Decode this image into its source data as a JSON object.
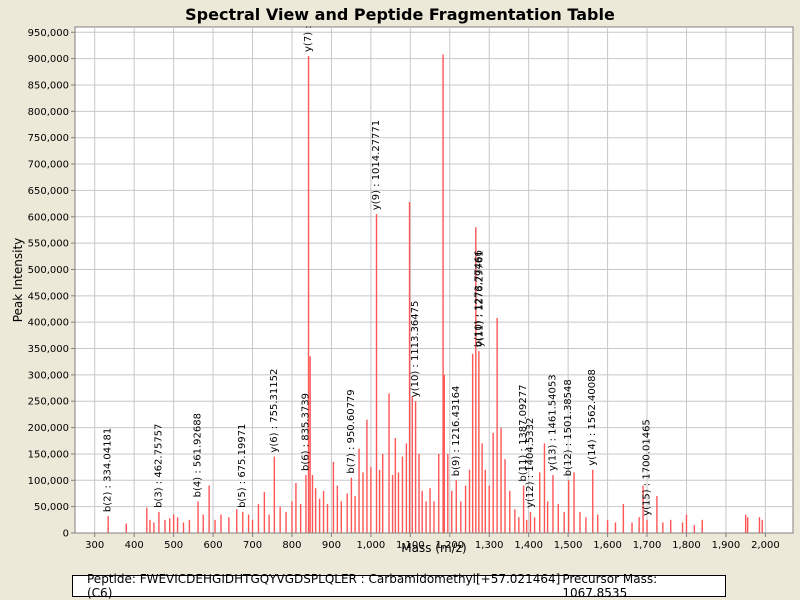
{
  "chart_data": {
    "type": "bar",
    "title": "Spectral View and Peptide Fragmentation Table",
    "xlabel": "Mass (m/z)",
    "ylabel": "Peak Intensity",
    "xlim": [
      250,
      2070
    ],
    "ylim": [
      0,
      960000
    ],
    "x_ticks": [
      300,
      400,
      500,
      600,
      700,
      800,
      900,
      1000,
      1100,
      1200,
      1300,
      1400,
      1500,
      1600,
      1700,
      1800,
      1900,
      2000
    ],
    "x_tick_labels": [
      "300",
      "400",
      "500",
      "600",
      "700",
      "800",
      "900",
      "1,000",
      "1,100",
      "1,200",
      "1,300",
      "1,400",
      "1,500",
      "1,600",
      "1,700",
      "1,800",
      "1,900",
      "2,000"
    ],
    "y_ticks": [
      0,
      50000,
      100000,
      150000,
      200000,
      250000,
      300000,
      350000,
      400000,
      450000,
      500000,
      550000,
      600000,
      650000,
      700000,
      750000,
      800000,
      850000,
      900000,
      950000
    ],
    "y_tick_labels": [
      "0",
      "50,000",
      "100,000",
      "150,000",
      "200,000",
      "250,000",
      "300,000",
      "350,000",
      "400,000",
      "450,000",
      "500,000",
      "550,000",
      "600,000",
      "650,000",
      "700,000",
      "750,000",
      "800,000",
      "850,000",
      "900,000",
      "950,000"
    ],
    "grid": true,
    "bar_color": "#ff5555",
    "peaks": [
      {
        "mz": 334.04,
        "intensity": 32000
      },
      {
        "mz": 380,
        "intensity": 18000
      },
      {
        "mz": 432,
        "intensity": 48000
      },
      {
        "mz": 440,
        "intensity": 25000
      },
      {
        "mz": 450,
        "intensity": 20000
      },
      {
        "mz": 462.76,
        "intensity": 40000
      },
      {
        "mz": 478,
        "intensity": 25000
      },
      {
        "mz": 490,
        "intensity": 28000
      },
      {
        "mz": 500,
        "intensity": 35000
      },
      {
        "mz": 510,
        "intensity": 30000
      },
      {
        "mz": 525,
        "intensity": 20000
      },
      {
        "mz": 540,
        "intensity": 25000
      },
      {
        "mz": 561.93,
        "intensity": 60000
      },
      {
        "mz": 575,
        "intensity": 35000
      },
      {
        "mz": 590,
        "intensity": 90000
      },
      {
        "mz": 605,
        "intensity": 25000
      },
      {
        "mz": 620,
        "intensity": 35000
      },
      {
        "mz": 640,
        "intensity": 30000
      },
      {
        "mz": 660,
        "intensity": 45000
      },
      {
        "mz": 675.2,
        "intensity": 40000
      },
      {
        "mz": 690,
        "intensity": 35000
      },
      {
        "mz": 700,
        "intensity": 25000
      },
      {
        "mz": 715,
        "intensity": 55000
      },
      {
        "mz": 730,
        "intensity": 78000
      },
      {
        "mz": 742,
        "intensity": 35000
      },
      {
        "mz": 755.31,
        "intensity": 145000
      },
      {
        "mz": 770,
        "intensity": 50000
      },
      {
        "mz": 785,
        "intensity": 40000
      },
      {
        "mz": 800,
        "intensity": 60000
      },
      {
        "mz": 810,
        "intensity": 95000
      },
      {
        "mz": 822,
        "intensity": 55000
      },
      {
        "mz": 835.37,
        "intensity": 110000
      },
      {
        "mz": 842,
        "intensity": 905000
      },
      {
        "mz": 846,
        "intensity": 335000
      },
      {
        "mz": 852,
        "intensity": 110000
      },
      {
        "mz": 860,
        "intensity": 85000
      },
      {
        "mz": 870,
        "intensity": 65000
      },
      {
        "mz": 880,
        "intensity": 80000
      },
      {
        "mz": 890,
        "intensity": 55000
      },
      {
        "mz": 905,
        "intensity": 135000
      },
      {
        "mz": 915,
        "intensity": 90000
      },
      {
        "mz": 925,
        "intensity": 60000
      },
      {
        "mz": 940,
        "intensity": 75000
      },
      {
        "mz": 950.61,
        "intensity": 105000
      },
      {
        "mz": 960,
        "intensity": 70000
      },
      {
        "mz": 970,
        "intensity": 160000
      },
      {
        "mz": 980,
        "intensity": 115000
      },
      {
        "mz": 990,
        "intensity": 215000
      },
      {
        "mz": 1000,
        "intensity": 125000
      },
      {
        "mz": 1014.28,
        "intensity": 605000
      },
      {
        "mz": 1022,
        "intensity": 120000
      },
      {
        "mz": 1030,
        "intensity": 150000
      },
      {
        "mz": 1046,
        "intensity": 265000
      },
      {
        "mz": 1055,
        "intensity": 110000
      },
      {
        "mz": 1062,
        "intensity": 180000
      },
      {
        "mz": 1070,
        "intensity": 115000
      },
      {
        "mz": 1080,
        "intensity": 145000
      },
      {
        "mz": 1090,
        "intensity": 170000
      },
      {
        "mz": 1098,
        "intensity": 628000
      },
      {
        "mz": 1105,
        "intensity": 260000
      },
      {
        "mz": 1113.36,
        "intensity": 250000
      },
      {
        "mz": 1122,
        "intensity": 150000
      },
      {
        "mz": 1130,
        "intensity": 80000
      },
      {
        "mz": 1140,
        "intensity": 60000
      },
      {
        "mz": 1150,
        "intensity": 85000
      },
      {
        "mz": 1160,
        "intensity": 60000
      },
      {
        "mz": 1172,
        "intensity": 150000
      },
      {
        "mz": 1183,
        "intensity": 908000
      },
      {
        "mz": 1186,
        "intensity": 300000
      },
      {
        "mz": 1195,
        "intensity": 150000
      },
      {
        "mz": 1205,
        "intensity": 80000
      },
      {
        "mz": 1216.43,
        "intensity": 100000
      },
      {
        "mz": 1228,
        "intensity": 60000
      },
      {
        "mz": 1240,
        "intensity": 90000
      },
      {
        "mz": 1250,
        "intensity": 120000
      },
      {
        "mz": 1258,
        "intensity": 340000
      },
      {
        "mz": 1266,
        "intensity": 580000
      },
      {
        "mz": 1273.77,
        "intensity": 345000
      },
      {
        "mz": 1282,
        "intensity": 170000
      },
      {
        "mz": 1290,
        "intensity": 120000
      },
      {
        "mz": 1300,
        "intensity": 90000
      },
      {
        "mz": 1310,
        "intensity": 190000
      },
      {
        "mz": 1320,
        "intensity": 408000
      },
      {
        "mz": 1330,
        "intensity": 200000
      },
      {
        "mz": 1340,
        "intensity": 140000
      },
      {
        "mz": 1352,
        "intensity": 80000
      },
      {
        "mz": 1365,
        "intensity": 45000
      },
      {
        "mz": 1375,
        "intensity": 30000
      },
      {
        "mz": 1387.09,
        "intensity": 90000
      },
      {
        "mz": 1395,
        "intensity": 25000
      },
      {
        "mz": 1404.53,
        "intensity": 40000
      },
      {
        "mz": 1415,
        "intensity": 30000
      },
      {
        "mz": 1428,
        "intensity": 115000
      },
      {
        "mz": 1440,
        "intensity": 170000
      },
      {
        "mz": 1448,
        "intensity": 60000
      },
      {
        "mz": 1461.54,
        "intensity": 110000
      },
      {
        "mz": 1475,
        "intensity": 55000
      },
      {
        "mz": 1490,
        "intensity": 40000
      },
      {
        "mz": 1501.39,
        "intensity": 100000
      },
      {
        "mz": 1515,
        "intensity": 115000
      },
      {
        "mz": 1530,
        "intensity": 40000
      },
      {
        "mz": 1545,
        "intensity": 30000
      },
      {
        "mz": 1562.4,
        "intensity": 120000
      },
      {
        "mz": 1575,
        "intensity": 35000
      },
      {
        "mz": 1600,
        "intensity": 25000
      },
      {
        "mz": 1620,
        "intensity": 20000
      },
      {
        "mz": 1640,
        "intensity": 55000
      },
      {
        "mz": 1662,
        "intensity": 20000
      },
      {
        "mz": 1680,
        "intensity": 30000
      },
      {
        "mz": 1690,
        "intensity": 90000
      },
      {
        "mz": 1700.01,
        "intensity": 25000
      },
      {
        "mz": 1725,
        "intensity": 70000
      },
      {
        "mz": 1740,
        "intensity": 20000
      },
      {
        "mz": 1760,
        "intensity": 25000
      },
      {
        "mz": 1790,
        "intensity": 20000
      },
      {
        "mz": 1800,
        "intensity": 35000
      },
      {
        "mz": 1820,
        "intensity": 15000
      },
      {
        "mz": 1840,
        "intensity": 25000
      },
      {
        "mz": 1950,
        "intensity": 35000
      },
      {
        "mz": 1955,
        "intensity": 30000
      },
      {
        "mz": 1985,
        "intensity": 30000
      },
      {
        "mz": 1992,
        "intensity": 25000
      }
    ],
    "annotations": [
      {
        "mz": 334.04181,
        "intensity": 32000,
        "label": "b(2) : 334.04181"
      },
      {
        "mz": 462.75757,
        "intensity": 40000,
        "label": "b(3) : 462.75757"
      },
      {
        "mz": 561.92688,
        "intensity": 60000,
        "label": "b(4) : 561.92688"
      },
      {
        "mz": 675.19971,
        "intensity": 40000,
        "label": "b(5) : 675.19971"
      },
      {
        "mz": 755.31152,
        "intensity": 145000,
        "label": "y(6) : 755.31152"
      },
      {
        "mz": 835.3739,
        "intensity": 110000,
        "label": "b(6) : 835.3739"
      },
      {
        "mz": 842,
        "intensity": 905000,
        "label": "y(7) :"
      },
      {
        "mz": 950.60779,
        "intensity": 105000,
        "label": "b(7) : 950.60779"
      },
      {
        "mz": 1014.27771,
        "intensity": 605000,
        "label": "y(9) : 1014.27771"
      },
      {
        "mz": 1113.36475,
        "intensity": 250000,
        "label": "y(10) : 1113.36475"
      },
      {
        "mz": 1216.43164,
        "intensity": 100000,
        "label": "b(9) : 1216.43164"
      },
      {
        "mz": 1273.77466,
        "intensity": 345000,
        "label": "b(10) : 1273.77466"
      },
      {
        "mz": 1276.29761,
        "intensity": 345000,
        "label": "y(11) : 1276.29761"
      },
      {
        "mz": 1387.09277,
        "intensity": 90000,
        "label": "b(11) : 1387.09277"
      },
      {
        "mz": 1404.5332,
        "intensity": 40000,
        "label": "y(12) : 1404.5332"
      },
      {
        "mz": 1461.54053,
        "intensity": 110000,
        "label": "y(13) : 1461.54053"
      },
      {
        "mz": 1501.38548,
        "intensity": 100000,
        "label": "b(12) : 1501.38548"
      },
      {
        "mz": 1562.40088,
        "intensity": 120000,
        "label": "y(14) : 1562.40088"
      },
      {
        "mz": 1700.01465,
        "intensity": 25000,
        "label": "y(15) : 1700.01465"
      }
    ]
  },
  "footer": {
    "peptide_label": "Peptide: FWEVICDEHGIDHTGQYVGDSPLQLER : Carbamidomethyl[+57.021464] (C6)",
    "precursor_label": "Precursor Mass: 1067.8535"
  }
}
